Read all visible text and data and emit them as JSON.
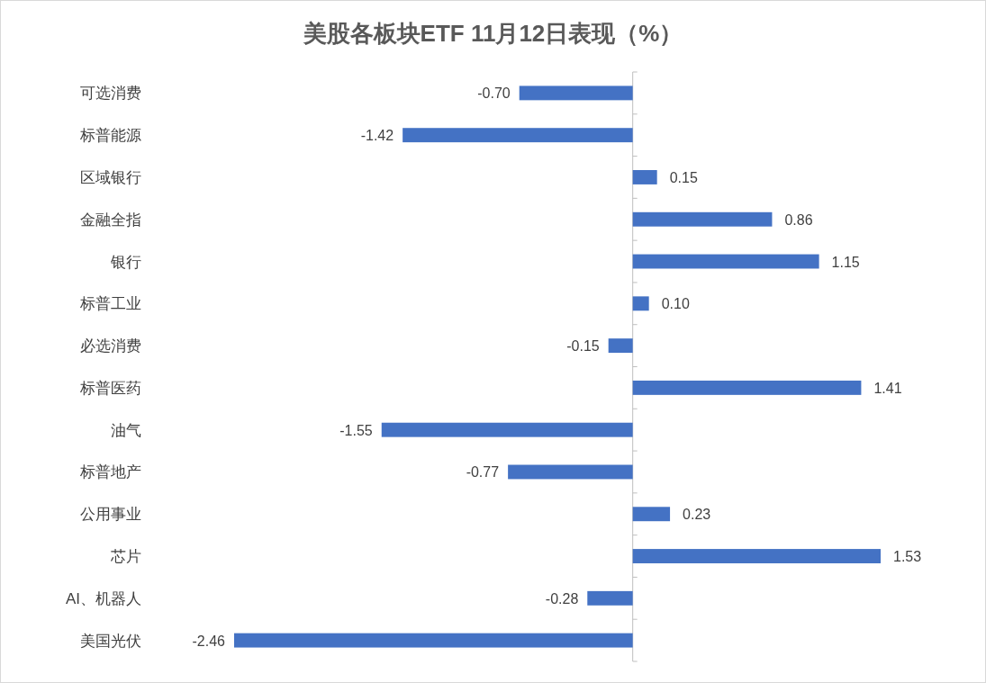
{
  "chart_data": {
    "type": "bar",
    "orientation": "horizontal",
    "title": "美股各板块ETF  11月12日表现（%）",
    "categories": [
      "可选消费",
      "标普能源",
      "区域银行",
      "金融全指",
      "银行",
      "标普工业",
      "必选消费",
      "标普医药",
      "油气",
      "标普地产",
      "公用事业",
      "芯片",
      "AI、机器人",
      "美国光伏"
    ],
    "values": [
      -0.7,
      -1.42,
      0.15,
      0.86,
      1.15,
      0.1,
      -0.15,
      1.41,
      -1.55,
      -0.77,
      0.23,
      1.53,
      -0.28,
      -2.46
    ],
    "value_labels": [
      "-0.70",
      "-1.42",
      "0.15",
      "0.86",
      "1.15",
      "0.10",
      "-0.15",
      "1.41",
      "-1.55",
      "-0.77",
      "0.23",
      "1.53",
      "-0.28",
      "-2.46"
    ],
    "color": "#4472c4"
  }
}
